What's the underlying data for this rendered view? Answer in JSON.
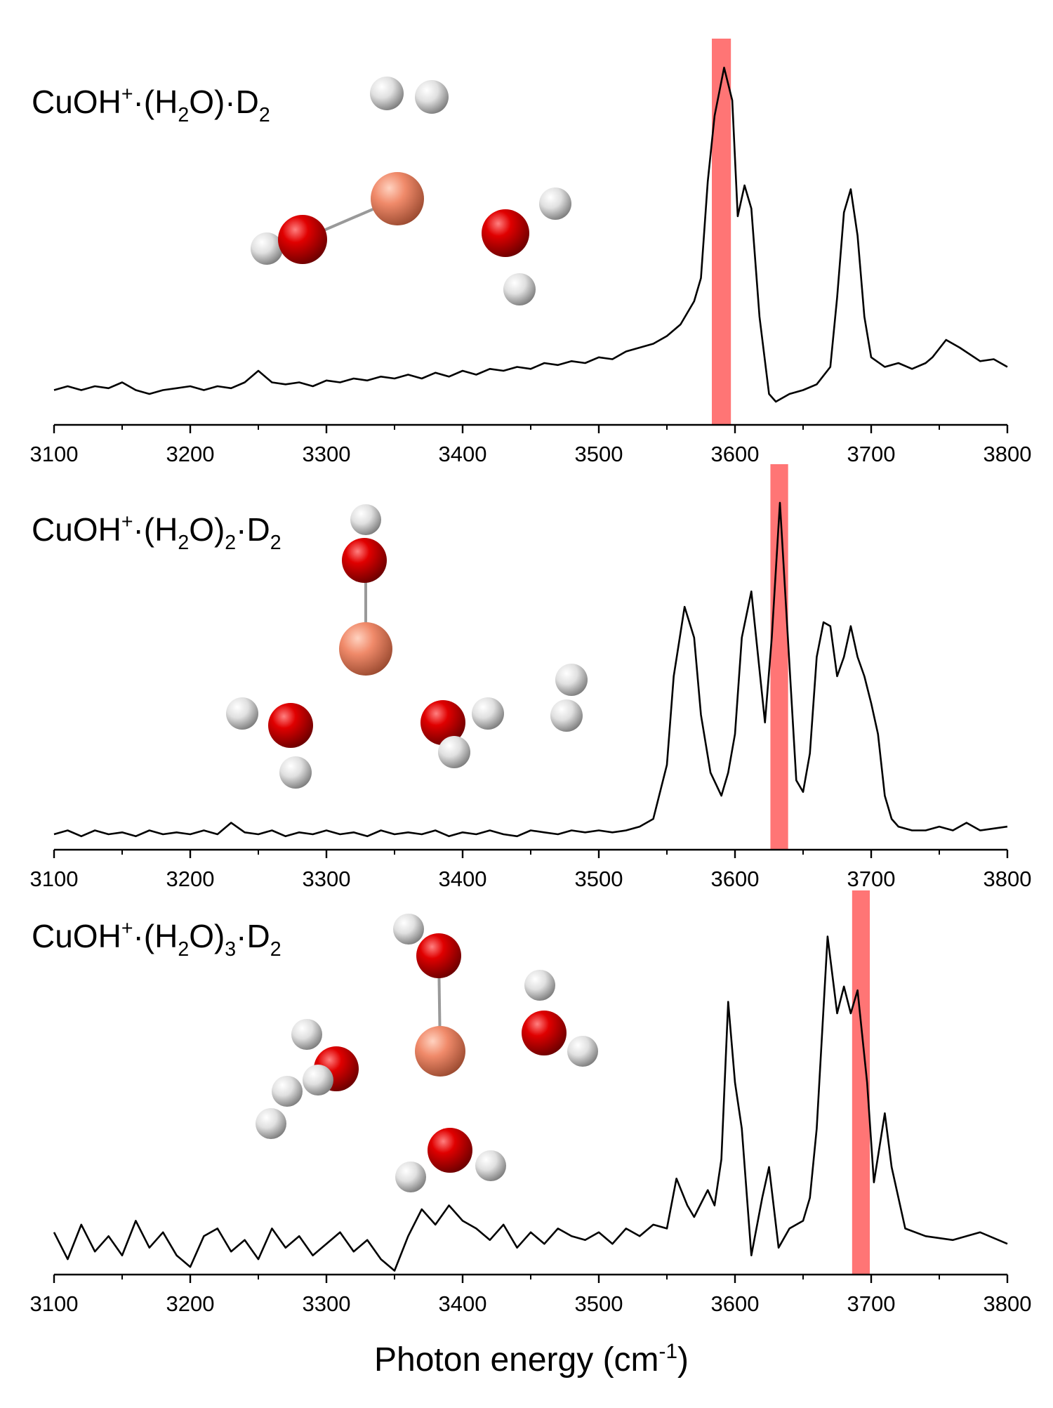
{
  "chart_data": [
    {
      "type": "line",
      "title_parts": [
        {
          "text": "CuOH"
        },
        {
          "text": "+",
          "shift": "super"
        },
        {
          "text": "·(H"
        },
        {
          "text": "2",
          "shift": "sub"
        },
        {
          "text": "O)·D"
        },
        {
          "text": "2",
          "shift": "sub"
        }
      ],
      "x": [
        3100,
        3110,
        3120,
        3130,
        3140,
        3150,
        3160,
        3170,
        3180,
        3190,
        3200,
        3210,
        3220,
        3230,
        3240,
        3250,
        3260,
        3270,
        3280,
        3290,
        3300,
        3310,
        3320,
        3330,
        3340,
        3350,
        3360,
        3370,
        3380,
        3390,
        3400,
        3410,
        3420,
        3430,
        3440,
        3450,
        3460,
        3470,
        3480,
        3490,
        3500,
        3510,
        3520,
        3530,
        3540,
        3550,
        3560,
        3570,
        3575,
        3580,
        3585,
        3592,
        3598,
        3602,
        3607,
        3612,
        3618,
        3625,
        3630,
        3640,
        3650,
        3660,
        3670,
        3675,
        3680,
        3685,
        3690,
        3695,
        3700,
        3710,
        3720,
        3730,
        3740,
        3745,
        3755,
        3765,
        3780,
        3790,
        3800
      ],
      "values": [
        0.09,
        0.1,
        0.09,
        0.1,
        0.095,
        0.11,
        0.09,
        0.08,
        0.09,
        0.095,
        0.1,
        0.09,
        0.1,
        0.095,
        0.11,
        0.14,
        0.11,
        0.105,
        0.11,
        0.1,
        0.115,
        0.11,
        0.12,
        0.115,
        0.125,
        0.12,
        0.13,
        0.12,
        0.135,
        0.125,
        0.14,
        0.13,
        0.145,
        0.14,
        0.15,
        0.145,
        0.16,
        0.155,
        0.165,
        0.16,
        0.175,
        0.17,
        0.19,
        0.2,
        0.21,
        0.23,
        0.26,
        0.32,
        0.38,
        0.63,
        0.8,
        0.925,
        0.84,
        0.54,
        0.62,
        0.56,
        0.28,
        0.08,
        0.06,
        0.08,
        0.09,
        0.105,
        0.15,
        0.33,
        0.55,
        0.61,
        0.49,
        0.28,
        0.175,
        0.15,
        0.16,
        0.145,
        0.16,
        0.175,
        0.22,
        0.2,
        0.165,
        0.17,
        0.15
      ],
      "color": "#000000",
      "highlight": [
        3583,
        3597
      ],
      "highlight_color": "#ff7575",
      "xlim": [
        3100,
        3800
      ],
      "ylim": [
        0,
        1
      ],
      "xticks": [
        3100,
        3200,
        3300,
        3400,
        3500,
        3600,
        3700,
        3800
      ],
      "xminorticks": [
        3150,
        3250,
        3350,
        3450,
        3550,
        3650,
        3750
      ]
    },
    {
      "type": "line",
      "title_parts": [
        {
          "text": "CuOH"
        },
        {
          "text": "+",
          "shift": "super"
        },
        {
          "text": "·(H"
        },
        {
          "text": "2",
          "shift": "sub"
        },
        {
          "text": "O)"
        },
        {
          "text": "2",
          "shift": "sub"
        },
        {
          "text": "·D"
        },
        {
          "text": "2",
          "shift": "sub"
        }
      ],
      "x": [
        3100,
        3110,
        3120,
        3130,
        3140,
        3150,
        3160,
        3170,
        3180,
        3190,
        3200,
        3210,
        3220,
        3230,
        3240,
        3250,
        3260,
        3270,
        3280,
        3290,
        3300,
        3310,
        3320,
        3330,
        3340,
        3350,
        3360,
        3370,
        3380,
        3390,
        3400,
        3410,
        3420,
        3430,
        3440,
        3450,
        3460,
        3470,
        3480,
        3490,
        3500,
        3510,
        3520,
        3530,
        3540,
        3550,
        3555,
        3563,
        3570,
        3575,
        3582,
        3590,
        3595,
        3600,
        3605,
        3612,
        3617,
        3622,
        3627,
        3633,
        3638,
        3645,
        3650,
        3655,
        3660,
        3665,
        3670,
        3675,
        3680,
        3685,
        3690,
        3695,
        3700,
        3705,
        3710,
        3715,
        3720,
        3730,
        3740,
        3750,
        3760,
        3770,
        3780,
        3790,
        3800
      ],
      "values": [
        0.04,
        0.05,
        0.035,
        0.05,
        0.04,
        0.045,
        0.035,
        0.05,
        0.04,
        0.045,
        0.04,
        0.05,
        0.04,
        0.07,
        0.045,
        0.04,
        0.05,
        0.035,
        0.045,
        0.04,
        0.05,
        0.04,
        0.045,
        0.035,
        0.05,
        0.04,
        0.045,
        0.04,
        0.05,
        0.035,
        0.045,
        0.04,
        0.05,
        0.04,
        0.035,
        0.05,
        0.045,
        0.04,
        0.05,
        0.045,
        0.05,
        0.045,
        0.05,
        0.06,
        0.08,
        0.22,
        0.45,
        0.63,
        0.55,
        0.35,
        0.2,
        0.14,
        0.2,
        0.3,
        0.55,
        0.67,
        0.5,
        0.33,
        0.55,
        0.9,
        0.6,
        0.18,
        0.15,
        0.25,
        0.5,
        0.59,
        0.58,
        0.45,
        0.5,
        0.58,
        0.5,
        0.45,
        0.38,
        0.3,
        0.14,
        0.08,
        0.06,
        0.05,
        0.05,
        0.06,
        0.05,
        0.07,
        0.05,
        0.055,
        0.06
      ],
      "color": "#000000",
      "highlight": [
        3626,
        3639
      ],
      "highlight_color": "#ff7575",
      "xlim": [
        3100,
        3800
      ],
      "ylim": [
        0,
        1
      ],
      "xticks": [
        3100,
        3200,
        3300,
        3400,
        3500,
        3600,
        3700,
        3800
      ],
      "xminorticks": [
        3150,
        3250,
        3350,
        3450,
        3550,
        3650,
        3750
      ]
    },
    {
      "type": "line",
      "title_parts": [
        {
          "text": "CuOH"
        },
        {
          "text": "+",
          "shift": "super"
        },
        {
          "text": "·(H"
        },
        {
          "text": "2",
          "shift": "sub"
        },
        {
          "text": "O)"
        },
        {
          "text": "3",
          "shift": "sub"
        },
        {
          "text": "·D"
        },
        {
          "text": "2",
          "shift": "sub"
        }
      ],
      "x": [
        3100,
        3110,
        3120,
        3130,
        3140,
        3150,
        3160,
        3170,
        3180,
        3190,
        3200,
        3210,
        3220,
        3230,
        3240,
        3250,
        3260,
        3270,
        3280,
        3290,
        3300,
        3310,
        3320,
        3330,
        3340,
        3350,
        3360,
        3370,
        3380,
        3390,
        3400,
        3410,
        3420,
        3430,
        3440,
        3450,
        3460,
        3470,
        3480,
        3490,
        3500,
        3510,
        3520,
        3530,
        3540,
        3550,
        3557,
        3565,
        3570,
        3580,
        3585,
        3590,
        3595,
        3600,
        3605,
        3612,
        3620,
        3625,
        3632,
        3640,
        3650,
        3655,
        3660,
        3668,
        3675,
        3680,
        3685,
        3690,
        3697,
        3702,
        3710,
        3715,
        3725,
        3740,
        3760,
        3780,
        3800
      ],
      "values": [
        0.11,
        0.04,
        0.13,
        0.06,
        0.1,
        0.05,
        0.14,
        0.07,
        0.11,
        0.05,
        0.02,
        0.1,
        0.12,
        0.06,
        0.09,
        0.04,
        0.12,
        0.07,
        0.1,
        0.05,
        0.08,
        0.11,
        0.06,
        0.09,
        0.04,
        0.01,
        0.1,
        0.17,
        0.13,
        0.18,
        0.14,
        0.12,
        0.09,
        0.13,
        0.07,
        0.11,
        0.08,
        0.12,
        0.1,
        0.09,
        0.11,
        0.08,
        0.12,
        0.1,
        0.13,
        0.12,
        0.25,
        0.18,
        0.15,
        0.22,
        0.18,
        0.3,
        0.71,
        0.5,
        0.38,
        0.05,
        0.2,
        0.28,
        0.07,
        0.12,
        0.14,
        0.2,
        0.38,
        0.88,
        0.68,
        0.75,
        0.68,
        0.74,
        0.5,
        0.24,
        0.42,
        0.28,
        0.12,
        0.1,
        0.09,
        0.11,
        0.08
      ],
      "color": "#000000",
      "highlight": [
        3686,
        3699
      ],
      "highlight_color": "#ff7575",
      "xlim": [
        3100,
        3800
      ],
      "ylim": [
        0,
        1
      ],
      "xticks": [
        3100,
        3200,
        3300,
        3400,
        3500,
        3600,
        3700,
        3800
      ],
      "xminorticks": [
        3150,
        3250,
        3350,
        3450,
        3550,
        3650,
        3750
      ],
      "xlabel_parts": [
        {
          "text": "Photon energy (cm"
        },
        {
          "text": "-1",
          "shift": "super"
        },
        {
          "text": ")"
        }
      ]
    }
  ]
}
